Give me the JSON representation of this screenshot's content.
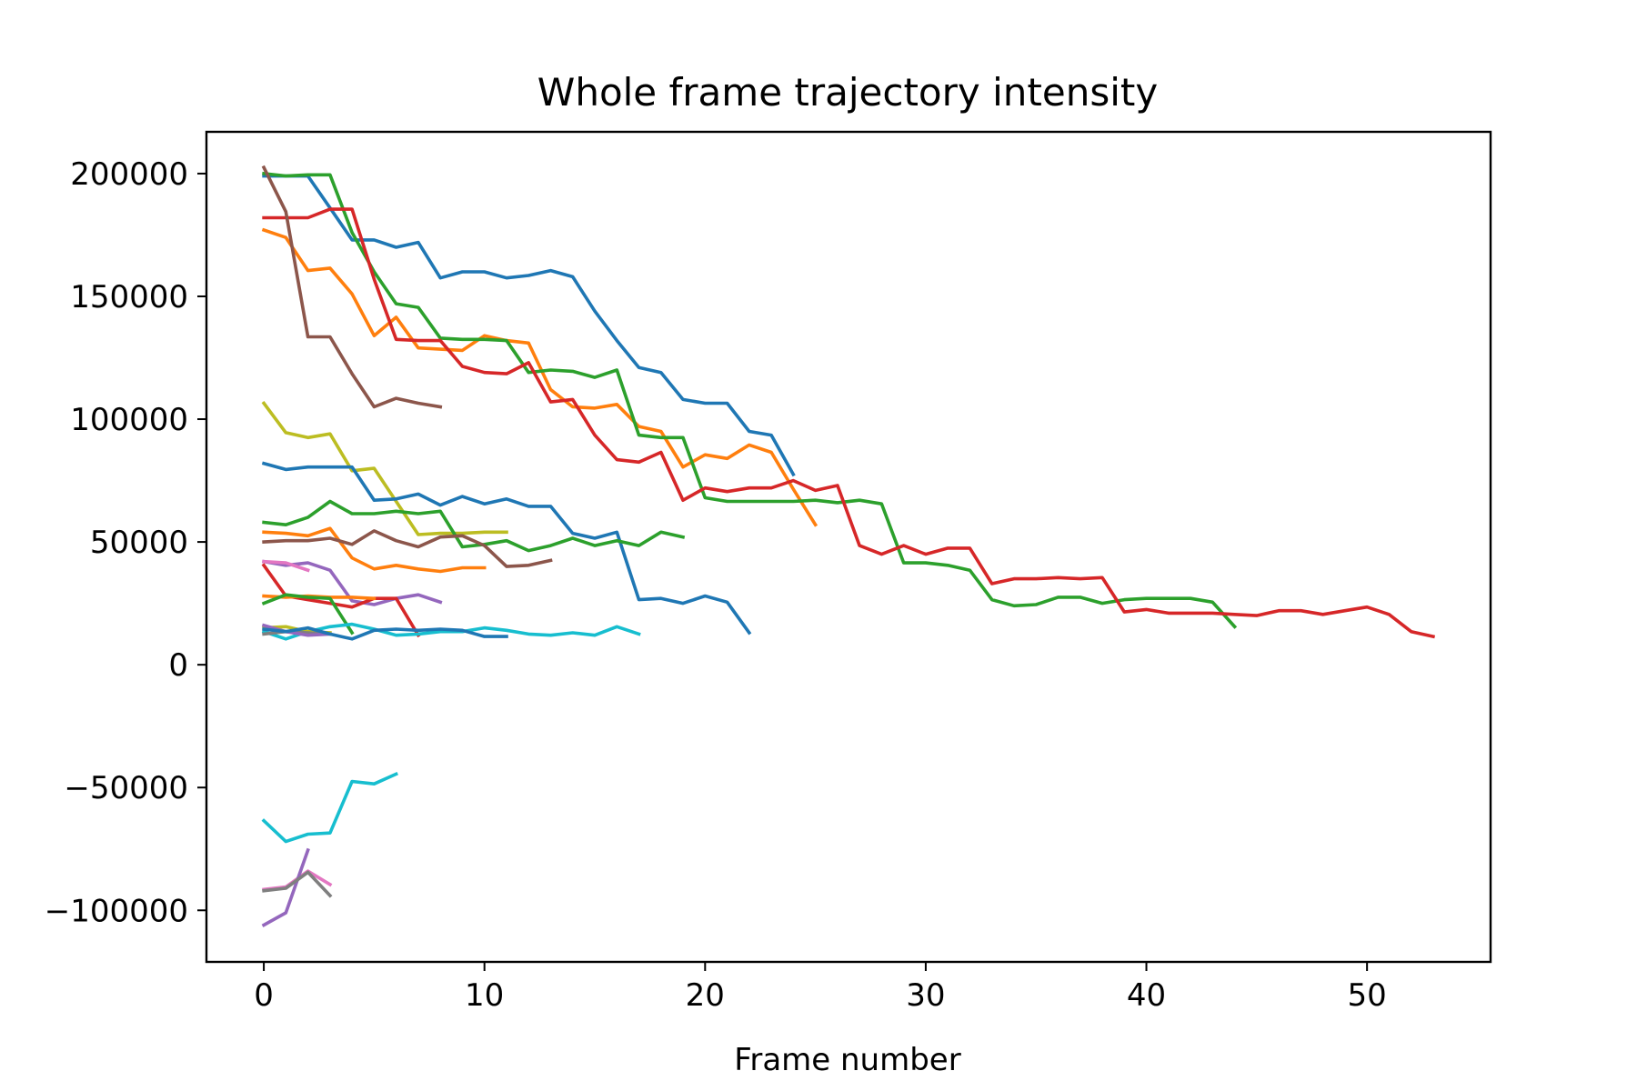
{
  "chart_data": {
    "type": "line",
    "title": "Whole frame trajectory intensity",
    "xlabel": "Frame number",
    "ylabel": "",
    "xlim": [
      -2.6,
      55.6
    ],
    "ylim": [
      -121000,
      217000
    ],
    "grid": false,
    "legend": "none",
    "xticks": [
      0,
      10,
      20,
      30,
      40,
      50
    ],
    "xtick_labels": [
      "0",
      "10",
      "20",
      "30",
      "40",
      "50"
    ],
    "yticks": [
      -100000,
      -50000,
      0,
      50000,
      100000,
      150000,
      200000
    ],
    "ytick_labels": [
      "−100000",
      "−50000",
      "0",
      "50000",
      "100000",
      "150000",
      "200000"
    ],
    "series": [
      {
        "name": "blue-long",
        "color": "#1f77b4",
        "x0": 0,
        "values": [
          199000,
          199000,
          199000,
          186000,
          173000,
          173000,
          170000,
          172000,
          157500,
          160000,
          160000,
          157500,
          158500,
          160500,
          158000,
          144000,
          132000,
          121000,
          119000,
          108000,
          106500,
          106500,
          95000,
          93500,
          77500
        ]
      },
      {
        "name": "orange-long",
        "color": "#ff7f0e",
        "x0": 0,
        "values": [
          177000,
          174000,
          160500,
          161500,
          151000,
          134000,
          141500,
          129000,
          128500,
          128000,
          134000,
          132000,
          131000,
          112000,
          105000,
          104500,
          106000,
          97000,
          95000,
          80500,
          85500,
          84000,
          89500,
          86500,
          71500,
          57000
        ]
      },
      {
        "name": "green-long",
        "color": "#2ca02c",
        "x0": 0,
        "values": [
          200000,
          199000,
          199500,
          199500,
          176000,
          160000,
          147000,
          145500,
          133000,
          132500,
          132500,
          132000,
          119000,
          120000,
          119500,
          117000,
          120000,
          93500,
          92500,
          92500,
          68000,
          66500,
          66500,
          66500,
          66500,
          67000,
          66000,
          67000,
          65500,
          41500,
          41500,
          40500,
          38500,
          26500,
          24000,
          24500,
          27500,
          27500,
          25000,
          26500,
          27000,
          27000,
          27000,
          25500,
          15500
        ]
      },
      {
        "name": "red-long",
        "color": "#d62728",
        "x0": 0,
        "values": [
          182000,
          182000,
          182000,
          185500,
          185500,
          157000,
          132500,
          132000,
          132000,
          121500,
          119000,
          118500,
          123000,
          107000,
          108000,
          93500,
          83500,
          82500,
          86500,
          67000,
          72000,
          70500,
          72000,
          72000,
          75000,
          71000,
          73000,
          48500,
          45000,
          48500,
          45000,
          47500,
          47500,
          33000,
          35000,
          35000,
          35500,
          35000,
          35500,
          21500,
          22500,
          21000,
          21000,
          21000,
          20500,
          20000,
          22000,
          22000,
          20500,
          22000,
          23500,
          20500,
          13500,
          11500
        ]
      },
      {
        "name": "brown-long",
        "color": "#8c564b",
        "x0": 0,
        "values": [
          202500,
          184500,
          133500,
          133500,
          118500,
          105000,
          108500,
          106500,
          105000
        ]
      },
      {
        "name": "olive",
        "color": "#bcbd22",
        "x0": 0,
        "values": [
          106500,
          94500,
          92500,
          94000,
          79000,
          80000,
          66500,
          53000,
          53500,
          53500,
          54000,
          54000
        ]
      },
      {
        "name": "blue-mid",
        "color": "#1f77b4",
        "x0": 0,
        "values": [
          82000,
          79500,
          80500,
          80500,
          80500,
          67000,
          67500,
          69500,
          65000,
          68500,
          65500,
          67500,
          64500,
          64500,
          53500,
          51500,
          54000,
          26500,
          27000,
          25000,
          28000,
          25500,
          13000
        ]
      },
      {
        "name": "green-mid",
        "color": "#2ca02c",
        "x0": 0,
        "values": [
          58000,
          57000,
          60000,
          66500,
          61500,
          61500,
          62500,
          61500,
          62500,
          48000,
          49000,
          50500,
          46500,
          48500,
          51500,
          48500,
          50500,
          48500,
          54000,
          52000
        ]
      },
      {
        "name": "orange-mid",
        "color": "#ff7f0e",
        "x0": 0,
        "values": [
          54000,
          53500,
          52500,
          55500,
          43500,
          39000,
          40500,
          39000,
          38000,
          39500,
          39500
        ]
      },
      {
        "name": "brown-mid",
        "color": "#8c564b",
        "x0": 0,
        "values": [
          50000,
          50500,
          50500,
          51500,
          49000,
          54500,
          50500,
          48000,
          52000,
          52500,
          48500,
          40000,
          40500,
          42500
        ]
      },
      {
        "name": "purple-a",
        "color": "#9467bd",
        "x0": 0,
        "values": [
          42000,
          40500,
          41500,
          38500,
          26000,
          24500,
          27000,
          28500,
          25500
        ]
      },
      {
        "name": "red-short",
        "color": "#d62728",
        "x0": 0,
        "values": [
          40500,
          28000,
          26500,
          25000,
          23500,
          27000,
          27000,
          12000
        ]
      },
      {
        "name": "pink-a",
        "color": "#e377c2",
        "x0": 0,
        "values": [
          42000,
          41500,
          38500
        ]
      },
      {
        "name": "orange-short",
        "color": "#ff7f0e",
        "x0": 0,
        "values": [
          28000,
          27500,
          28000,
          27500,
          27500,
          27000
        ]
      },
      {
        "name": "green-short",
        "color": "#2ca02c",
        "x0": 0,
        "values": [
          25000,
          28500,
          27500,
          27000,
          13000
        ]
      },
      {
        "name": "cyan-long",
        "color": "#17becf",
        "x0": 0,
        "values": [
          13500,
          10500,
          13500,
          15500,
          16500,
          14500,
          12000,
          12500,
          13500,
          13500,
          15000,
          14000,
          12500,
          12000,
          13000,
          12000,
          15500,
          12500
        ]
      },
      {
        "name": "olive-short",
        "color": "#bcbd22",
        "x0": 0,
        "values": [
          15000,
          15500,
          13500,
          13000
        ]
      },
      {
        "name": "gray-short",
        "color": "#7f7f7f",
        "x0": 0,
        "values": [
          12500,
          13500,
          13000,
          12500
        ]
      },
      {
        "name": "purple-short",
        "color": "#9467bd",
        "x0": 0,
        "values": [
          16000,
          13500,
          12000,
          12500
        ]
      },
      {
        "name": "navy-short",
        "color": "#1f77b4",
        "x0": 0,
        "values": [
          14500,
          13500,
          15000,
          12500,
          10500,
          14000,
          14500,
          14000,
          14500,
          14000,
          11500,
          11500
        ]
      },
      {
        "name": "cyan-neg",
        "color": "#17becf",
        "x0": 0,
        "values": [
          -63500,
          -72000,
          -69000,
          -68500,
          -47500,
          -48500,
          -44500
        ]
      },
      {
        "name": "pink-neg",
        "color": "#e377c2",
        "x0": 0,
        "values": [
          -91500,
          -90500,
          -84000,
          -89500
        ]
      },
      {
        "name": "purple-neg",
        "color": "#9467bd",
        "x0": 0,
        "values": [
          -106000,
          -101000,
          -75500
        ]
      },
      {
        "name": "gray-neg",
        "color": "#7f7f7f",
        "x0": 0,
        "values": [
          -92000,
          -91000,
          -84500,
          -94000
        ]
      }
    ]
  }
}
